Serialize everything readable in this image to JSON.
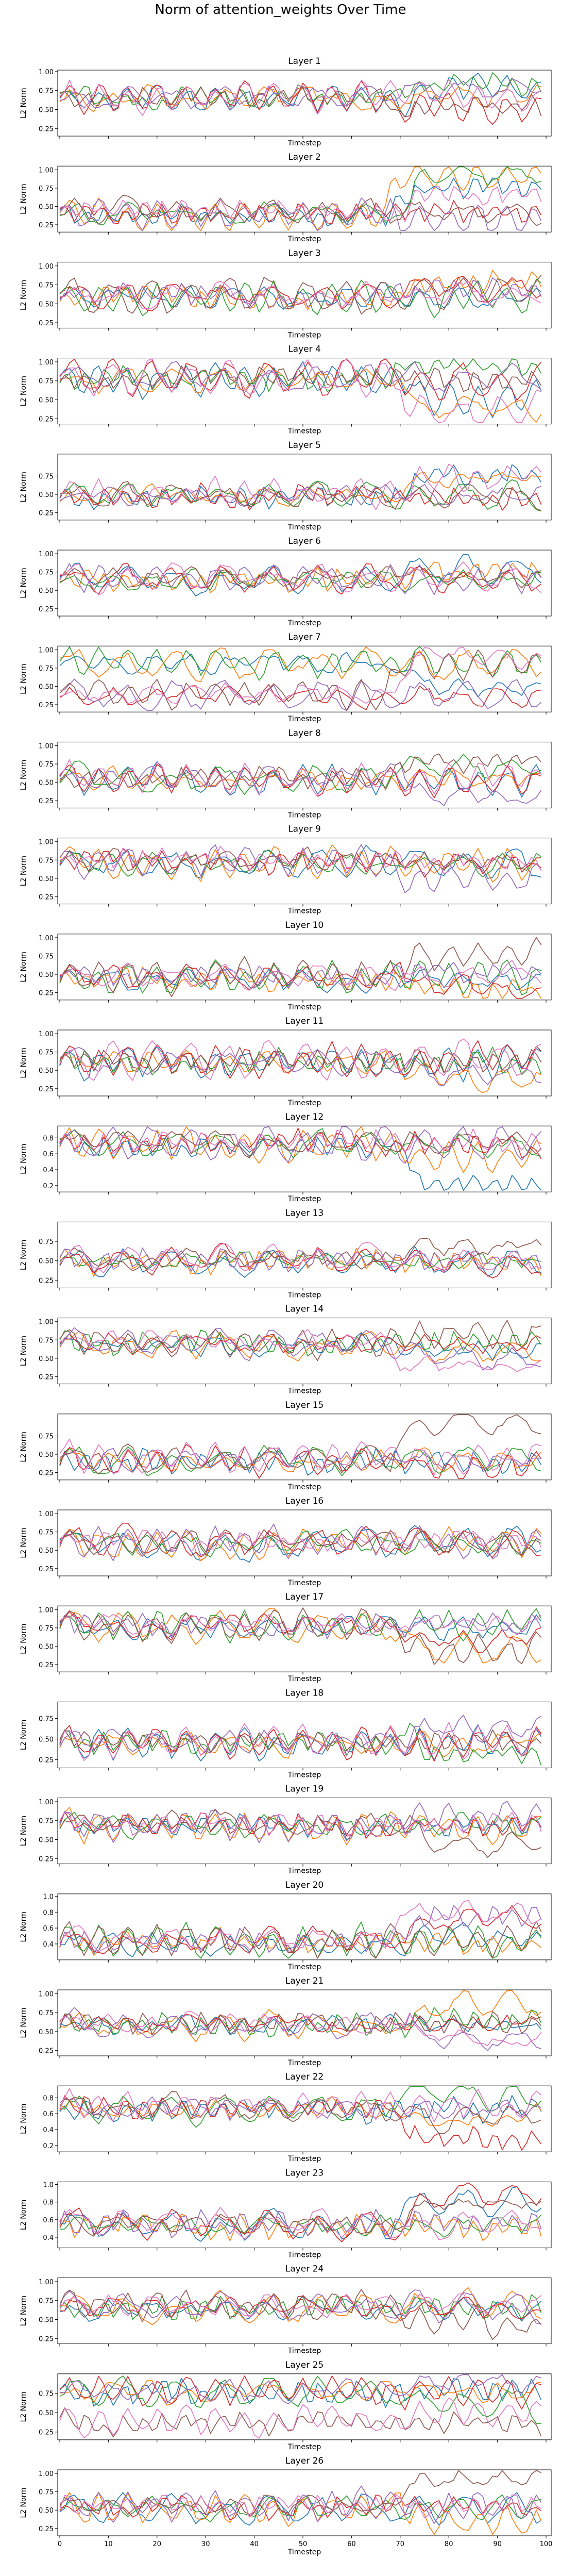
{
  "figure_title": "Norm of attention_weights Over Time",
  "chart_data": {
    "type": "line",
    "xlabel": "Timestep",
    "ylabel": "L2 Norm",
    "x_range": [
      0,
      99
    ],
    "x_ticks": [
      0,
      10,
      20,
      30,
      40,
      50,
      60,
      70,
      80,
      90,
      100
    ],
    "series_colors": [
      "#1f77b4",
      "#ff7f0e",
      "#2ca02c",
      "#d62728",
      "#9467bd",
      "#8c564b",
      "#e377c2"
    ],
    "series_per_panel": 7,
    "grid": false,
    "legend": "none",
    "panels": [
      {
        "title": "Layer 1",
        "ylim": [
          0.15,
          1.02
        ],
        "yticks": [
          "1.00",
          "0.75",
          "0.50",
          "0.25"
        ]
      },
      {
        "title": "Layer 2",
        "ylim": [
          0.15,
          1.05
        ],
        "yticks": [
          "1.00",
          "0.75",
          "0.50",
          "0.25"
        ]
      },
      {
        "title": "Layer 3",
        "ylim": [
          0.18,
          1.05
        ],
        "yticks": [
          "1.00",
          "0.75",
          "0.50",
          "0.25"
        ]
      },
      {
        "title": "Layer 4",
        "ylim": [
          0.18,
          1.05
        ],
        "yticks": [
          "1.00",
          "0.75",
          "0.50",
          "0.25"
        ]
      },
      {
        "title": "Layer 5",
        "ylim": [
          0.15,
          1.05
        ],
        "yticks": [
          "0.75",
          "0.50",
          "0.25"
        ]
      },
      {
        "title": "Layer 6",
        "ylim": [
          0.15,
          1.05
        ],
        "yticks": [
          "1.00",
          "0.75",
          "0.50",
          "0.25"
        ]
      },
      {
        "title": "Layer 7",
        "ylim": [
          0.15,
          1.05
        ],
        "yticks": [
          "1.00",
          "0.75",
          "0.50",
          "0.25"
        ]
      },
      {
        "title": "Layer 8",
        "ylim": [
          0.15,
          1.05
        ],
        "yticks": [
          "1.00",
          "0.75",
          "0.50",
          "0.25"
        ]
      },
      {
        "title": "Layer 9",
        "ylim": [
          0.15,
          1.05
        ],
        "yticks": [
          "1.00",
          "0.75",
          "0.50",
          "0.25"
        ]
      },
      {
        "title": "Layer 10",
        "ylim": [
          0.15,
          1.05
        ],
        "yticks": [
          "1.00",
          "0.75",
          "0.50",
          "0.25"
        ]
      },
      {
        "title": "Layer 11",
        "ylim": [
          0.15,
          1.05
        ],
        "yticks": [
          "1.00",
          "0.75",
          "0.50",
          "0.25"
        ]
      },
      {
        "title": "Layer 12",
        "ylim": [
          0.12,
          0.95
        ],
        "yticks": [
          "0.8",
          "0.6",
          "0.4",
          "0.2"
        ]
      },
      {
        "title": "Layer 13",
        "ylim": [
          0.15,
          1.0
        ],
        "yticks": [
          "0.75",
          "0.50",
          "0.25"
        ]
      },
      {
        "title": "Layer 14",
        "ylim": [
          0.15,
          1.05
        ],
        "yticks": [
          "1.00",
          "0.75",
          "0.50",
          "0.25"
        ]
      },
      {
        "title": "Layer 15",
        "ylim": [
          0.15,
          1.05
        ],
        "yticks": [
          "0.75",
          "0.50",
          "0.25"
        ]
      },
      {
        "title": "Layer 16",
        "ylim": [
          0.15,
          1.05
        ],
        "yticks": [
          "1.00",
          "0.75",
          "0.50",
          "0.25"
        ]
      },
      {
        "title": "Layer 17",
        "ylim": [
          0.15,
          1.05
        ],
        "yticks": [
          "1.00",
          "0.75",
          "0.50",
          "0.25"
        ]
      },
      {
        "title": "Layer 18",
        "ylim": [
          0.15,
          0.95
        ],
        "yticks": [
          "0.75",
          "0.50",
          "0.25"
        ]
      },
      {
        "title": "Layer 19",
        "ylim": [
          0.18,
          1.05
        ],
        "yticks": [
          "1.00",
          "0.75",
          "0.50",
          "0.25"
        ]
      },
      {
        "title": "Layer 20",
        "ylim": [
          0.2,
          1.03
        ],
        "yticks": [
          "1.0",
          "0.8",
          "0.6",
          "0.4"
        ]
      },
      {
        "title": "Layer 21",
        "ylim": [
          0.18,
          1.05
        ],
        "yticks": [
          "1.00",
          "0.75",
          "0.50",
          "0.25"
        ]
      },
      {
        "title": "Layer 22",
        "ylim": [
          0.12,
          0.95
        ],
        "yticks": [
          "0.8",
          "0.6",
          "0.4",
          "0.2"
        ]
      },
      {
        "title": "Layer 23",
        "ylim": [
          0.28,
          1.03
        ],
        "yticks": [
          "1.0",
          "0.8",
          "0.6",
          "0.4"
        ]
      },
      {
        "title": "Layer 24",
        "ylim": [
          0.18,
          1.05
        ],
        "yticks": [
          "1.00",
          "0.75",
          "0.50",
          "0.25"
        ]
      },
      {
        "title": "Layer 25",
        "ylim": [
          0.15,
          1.0
        ],
        "yticks": [
          "0.75",
          "0.50",
          "0.25"
        ]
      },
      {
        "title": "Layer 26",
        "ylim": [
          0.15,
          1.05
        ],
        "yticks": [
          "1.00",
          "0.75",
          "0.50",
          "0.25"
        ]
      }
    ]
  }
}
